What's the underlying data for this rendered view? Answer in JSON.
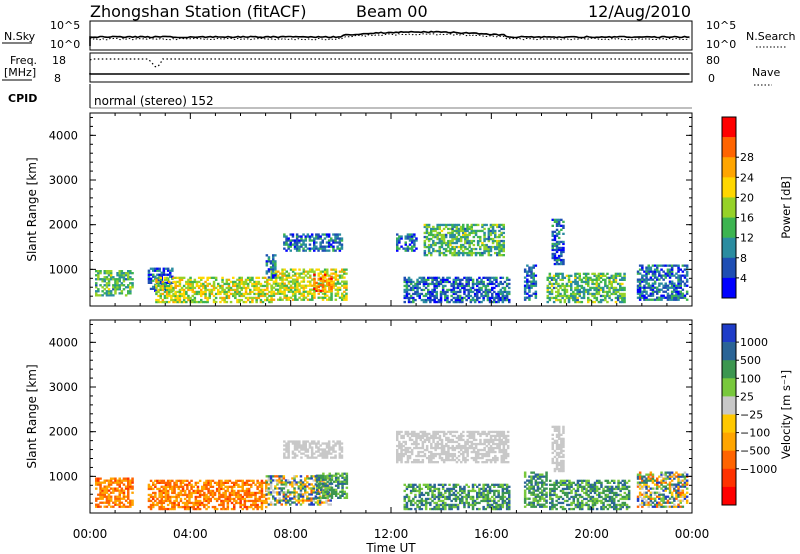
{
  "header": {
    "station": "Zhongshan Station (fitACF)",
    "beam": "Beam 00",
    "date": "12/Aug/2010"
  },
  "strips": {
    "nsky": {
      "label": "N.Sky",
      "tick_top": "10^5",
      "tick_bottom": "10^0"
    },
    "nsearch": {
      "label": "N.Search",
      "tick_top": "10^5",
      "tick_bottom": "10^0"
    },
    "freq": {
      "label_line1": "Freq.",
      "label_line2": "[MHz]",
      "tick_top": "18",
      "tick_bottom": "8"
    },
    "nave": {
      "label": "Nave",
      "tick_top": "80",
      "tick_bottom": "0"
    },
    "cpid": {
      "label": "CPID",
      "text": "normal (stereo) 152"
    }
  },
  "chart_data": [
    {
      "type": "heatmap",
      "title": "",
      "xlabel": "Time UT",
      "ylabel": "Slant Range [km]",
      "xlim": [
        "00:00",
        "24:00"
      ],
      "x_ticks": [
        "00:00",
        "04:00",
        "08:00",
        "12:00",
        "16:00",
        "20:00",
        "00:00"
      ],
      "ylim": [
        180,
        4500
      ],
      "y_ticks": [
        "1000",
        "2000",
        "3000",
        "4000"
      ],
      "colorbar": {
        "label": "Power [dB]",
        "ticks": [
          "4",
          "8",
          "12",
          "16",
          "20",
          "24",
          "28"
        ],
        "range": [
          0,
          30
        ],
        "colors": [
          "#0000ff",
          "#1e4eb4",
          "#2a8ca0",
          "#3cb450",
          "#96d228",
          "#ffd700",
          "#ffa500",
          "#ff6400",
          "#ff0000"
        ]
      },
      "regions": [
        {
          "t0": 0.2,
          "t1": 1.7,
          "r0": 400,
          "r1": 950,
          "level": "mid"
        },
        {
          "t0": 2.3,
          "t1": 3.3,
          "r0": 500,
          "r1": 1000,
          "level": "low"
        },
        {
          "t0": 2.6,
          "t1": 7.2,
          "r0": 250,
          "r1": 800,
          "level": "high"
        },
        {
          "t0": 7.2,
          "t1": 10.2,
          "r0": 300,
          "r1": 1000,
          "level": "high"
        },
        {
          "t0": 8.9,
          "t1": 9.6,
          "r0": 500,
          "r1": 900,
          "level": "max"
        },
        {
          "t0": 7.0,
          "t1": 7.4,
          "r0": 800,
          "r1": 1300,
          "level": "low"
        },
        {
          "t0": 7.7,
          "t1": 10.0,
          "r0": 1400,
          "r1": 1800,
          "level": "low"
        },
        {
          "t0": 13.3,
          "t1": 16.5,
          "r0": 1300,
          "r1": 2000,
          "level": "mid"
        },
        {
          "t0": 12.2,
          "t1": 13.0,
          "r0": 1400,
          "r1": 1800,
          "level": "low"
        },
        {
          "t0": 12.5,
          "t1": 16.7,
          "r0": 250,
          "r1": 800,
          "level": "low"
        },
        {
          "t0": 17.3,
          "t1": 17.8,
          "r0": 300,
          "r1": 1100,
          "level": "low"
        },
        {
          "t0": 18.2,
          "t1": 21.3,
          "r0": 250,
          "r1": 900,
          "level": "mid"
        },
        {
          "t0": 18.4,
          "t1": 18.9,
          "r0": 1100,
          "r1": 2100,
          "level": "low"
        },
        {
          "t0": 21.8,
          "t1": 23.8,
          "r0": 300,
          "r1": 1100,
          "level": "low"
        }
      ]
    },
    {
      "type": "heatmap",
      "title": "",
      "xlabel": "Time UT",
      "ylabel": "Slant Range [km]",
      "xlim": [
        "00:00",
        "24:00"
      ],
      "x_ticks": [
        "00:00",
        "04:00",
        "08:00",
        "12:00",
        "16:00",
        "20:00",
        "00:00"
      ],
      "ylim": [
        180,
        4500
      ],
      "y_ticks": [
        "1000",
        "2000",
        "3000",
        "4000"
      ],
      "colorbar": {
        "label": "Velocity [m s⁻¹]",
        "ticks": [
          "1000",
          "500",
          "100",
          "25",
          "−25",
          "−100",
          "−500",
          "−1000"
        ],
        "colors": [
          "#1e3cc8",
          "#2a6496",
          "#3c9650",
          "#78c83c",
          "#c8c8c8",
          "#ffc800",
          "#ffa500",
          "#ff6400",
          "#ff3200",
          "#ff0000"
        ]
      },
      "regions": [
        {
          "t0": 0.2,
          "t1": 1.7,
          "r0": 300,
          "r1": 950,
          "velocity": "negative"
        },
        {
          "t0": 2.3,
          "t1": 7.0,
          "r0": 250,
          "r1": 900,
          "velocity": "negative"
        },
        {
          "t0": 7.0,
          "t1": 9.6,
          "r0": 350,
          "r1": 1000,
          "velocity": "mixed"
        },
        {
          "t0": 9.0,
          "t1": 10.2,
          "r0": 500,
          "r1": 1050,
          "velocity": "positive"
        },
        {
          "t0": 7.7,
          "t1": 10.0,
          "r0": 1400,
          "r1": 1800,
          "velocity": "near-zero"
        },
        {
          "t0": 12.2,
          "t1": 16.7,
          "r0": 1300,
          "r1": 2000,
          "velocity": "near-zero"
        },
        {
          "t0": 12.5,
          "t1": 16.7,
          "r0": 250,
          "r1": 800,
          "velocity": "positive"
        },
        {
          "t0": 17.3,
          "t1": 18.2,
          "r0": 300,
          "r1": 1100,
          "velocity": "positive"
        },
        {
          "t0": 18.3,
          "t1": 21.5,
          "r0": 250,
          "r1": 900,
          "velocity": "positive"
        },
        {
          "t0": 18.4,
          "t1": 18.9,
          "r0": 1100,
          "r1": 2100,
          "velocity": "near-zero"
        },
        {
          "t0": 21.8,
          "t1": 23.8,
          "r0": 300,
          "r1": 1100,
          "velocity": "mixed"
        }
      ]
    }
  ]
}
